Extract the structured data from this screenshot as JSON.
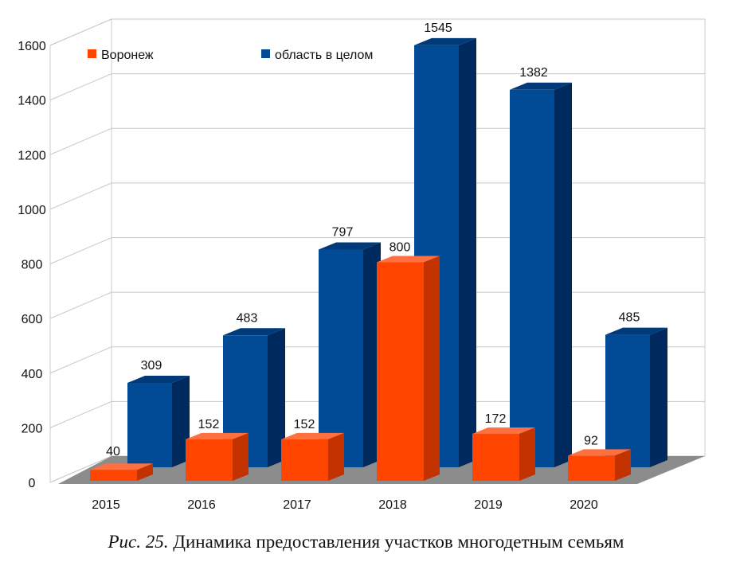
{
  "chart_data": {
    "type": "bar",
    "style": "3d-clustered",
    "categories": [
      "2015",
      "2016",
      "2017",
      "2018",
      "2019",
      "2020"
    ],
    "series": [
      {
        "name": "Воронеж",
        "values": [
          40,
          152,
          152,
          800,
          172,
          92
        ],
        "color": "#ff4500"
      },
      {
        "name": "область в целом",
        "values": [
          309,
          483,
          797,
          1545,
          1382,
          485
        ],
        "color": "#004a96"
      }
    ],
    "ylim": [
      0,
      1600
    ],
    "yticks": [
      0,
      200,
      400,
      600,
      800,
      1000,
      1200,
      1400,
      1600
    ],
    "grid": true,
    "legend": "top-left"
  },
  "caption": {
    "prefix": "Рис. 25.",
    "text": " Динамика предоставления участков многодетным семьям"
  }
}
